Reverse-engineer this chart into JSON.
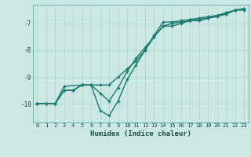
{
  "xlabel": "Humidex (Indice chaleur)",
  "ylabel": "",
  "background_color": "#cce8e4",
  "grid_color": "#aad4ce",
  "line_color": "#1a7a6e",
  "xlim": [
    -0.5,
    23.5
  ],
  "ylim": [
    -10.7,
    -6.3
  ],
  "yticks": [
    -10,
    -9,
    -8,
    -7
  ],
  "xticks": [
    0,
    1,
    2,
    3,
    4,
    5,
    6,
    7,
    8,
    9,
    10,
    11,
    12,
    13,
    14,
    15,
    16,
    17,
    18,
    19,
    20,
    21,
    22,
    23
  ],
  "series1_x": [
    0,
    1,
    2,
    3,
    4,
    5,
    6,
    7,
    8,
    9,
    10,
    11,
    12,
    13,
    14,
    15,
    16,
    17,
    18,
    19,
    20,
    21,
    22,
    23
  ],
  "series1_y": [
    -10.0,
    -10.0,
    -10.0,
    -9.5,
    -9.5,
    -9.3,
    -9.3,
    -9.6,
    -9.9,
    -9.4,
    -8.8,
    -8.3,
    -7.9,
    -7.5,
    -7.1,
    -7.1,
    -7.0,
    -6.9,
    -6.9,
    -6.8,
    -6.7,
    -6.6,
    -6.5,
    -6.5
  ],
  "series2_x": [
    0,
    2,
    3,
    5,
    6,
    7,
    8,
    9,
    10,
    11,
    12,
    13,
    14,
    15,
    16,
    17,
    18,
    19,
    20,
    21,
    22,
    23
  ],
  "series2_y": [
    -10.0,
    -10.0,
    -9.35,
    -9.3,
    -9.3,
    -10.25,
    -10.45,
    -9.9,
    -9.1,
    -8.55,
    -8.0,
    -7.45,
    -6.95,
    -6.95,
    -6.9,
    -6.85,
    -6.8,
    -6.75,
    -6.7,
    -6.65,
    -6.5,
    -6.45
  ],
  "series3_x": [
    0,
    1,
    2,
    3,
    4,
    5,
    6,
    7,
    8,
    9,
    10,
    11,
    12,
    13,
    14,
    15,
    16,
    17,
    18,
    19,
    20,
    21,
    22,
    23
  ],
  "series3_y": [
    -10.0,
    -10.0,
    -10.0,
    -9.5,
    -9.5,
    -9.3,
    -9.3,
    -9.3,
    -9.3,
    -9.0,
    -8.7,
    -8.4,
    -8.0,
    -7.5,
    -7.1,
    -7.0,
    -6.95,
    -6.9,
    -6.85,
    -6.8,
    -6.75,
    -6.65,
    -6.5,
    -6.45
  ],
  "tick_fontsize": 5.0,
  "xlabel_fontsize": 6.5
}
